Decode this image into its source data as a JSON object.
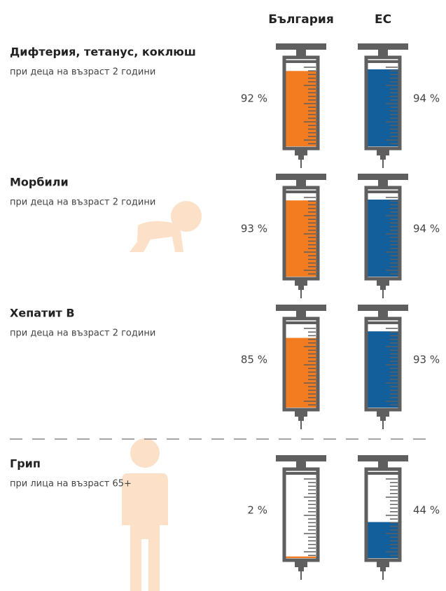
{
  "chart_data": {
    "type": "syringe",
    "categories": [
      "Дифтерия, тетанус, коклюш",
      "Морбили",
      "Хепатит В",
      "Грип"
    ],
    "subtitles": [
      "при деца на възраст 2 години",
      "при деца на възраст 2 години",
      "при деца на възраст 2 години",
      "при лица на възраст 65+"
    ],
    "ylim": [
      0,
      100
    ],
    "series": [
      {
        "name": "България",
        "color": "#f47c20",
        "values": [
          92,
          93,
          85,
          2
        ],
        "value_labels": [
          "92 %",
          "93 %",
          "85 %",
          "2 %"
        ]
      },
      {
        "name": "ЕС",
        "color": "#135f9b",
        "values": [
          94,
          94,
          93,
          44
        ],
        "value_labels": [
          "94 %",
          "94 %",
          "93 %",
          "44 %"
        ]
      }
    ]
  }
}
